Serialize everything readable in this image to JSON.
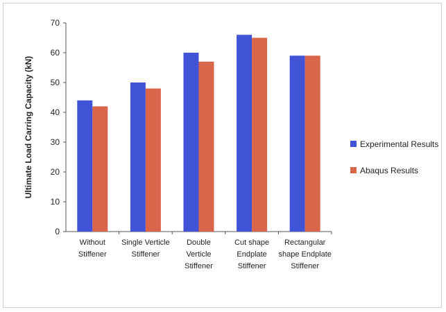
{
  "chart_data": {
    "type": "bar",
    "title": "",
    "xlabel": "",
    "ylabel": "Ultimate Load Carring Capacity   (kN)",
    "ylim": [
      0,
      70
    ],
    "yticks": [
      0,
      10,
      20,
      30,
      40,
      50,
      60,
      70
    ],
    "grid": false,
    "legend_position": "right",
    "categories": [
      [
        "Without",
        "Stiffener"
      ],
      [
        "Single Verticle",
        "Stiffener"
      ],
      [
        "Double",
        "Verticle",
        "Stiffener"
      ],
      [
        "Cut shape",
        "Endplate",
        "Stiffener"
      ],
      [
        "Rectangular",
        "shape Endplate",
        "Stiffener"
      ]
    ],
    "series": [
      {
        "name": "Experimental Results",
        "color": "#4153d6",
        "values": [
          44,
          50,
          60,
          66,
          59
        ]
      },
      {
        "name": "Abaqus Results",
        "color": "#d9664a",
        "values": [
          42,
          48,
          57,
          65,
          59
        ]
      }
    ]
  }
}
